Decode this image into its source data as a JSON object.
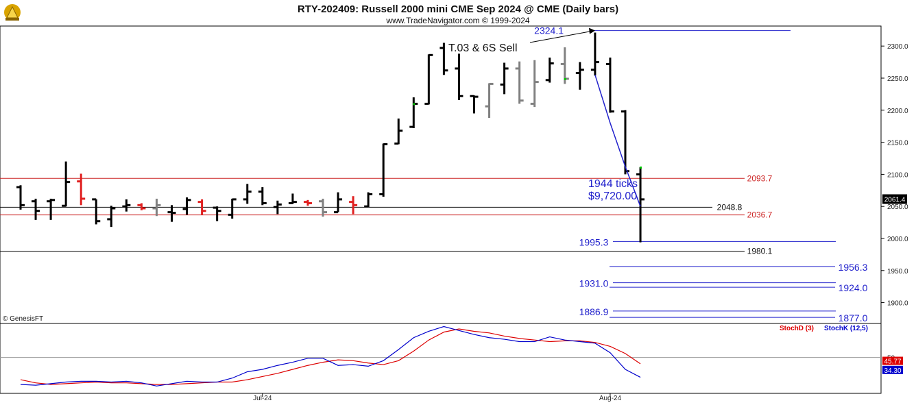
{
  "header": {
    "title": "RTY-202409:  Russell 2000 mini CME Sep 2024 @ CME  (Daily bars)",
    "subtitle": "www.TradeNavigator.com © 1999-2024",
    "copyright": "© GenesisFT"
  },
  "colors": {
    "bar_black": "#000000",
    "bar_gray": "#808080",
    "bar_red": "#e02020",
    "level_blue": "#2222cc",
    "level_red": "#cc2222",
    "stochD": "#dd0000",
    "stochK": "#0000cc"
  },
  "chart_data": [
    {
      "type": "ohlc",
      "title": "RTY-202409:  Russell 2000 mini CME Sep 2024 @ CME  (Daily bars)",
      "y_ticks": [
        "1900.0",
        "1950.0",
        "2000.0",
        "2050.0",
        "2100.0",
        "2150.0",
        "2200.0",
        "2250.0",
        "2300.0"
      ],
      "x_tick_labels": [
        {
          "label": "Jul-24",
          "bar_index": 16
        },
        {
          "label": "Aug-24",
          "bar_index": 39
        }
      ],
      "ylim": [
        1877,
        2330
      ],
      "last_price": "2061.4",
      "bars": [
        {
          "o": 2080,
          "h": 2083,
          "l": 2045,
          "c": 2052,
          "color": "black"
        },
        {
          "o": 2058,
          "h": 2062,
          "l": 2029,
          "c": 2043,
          "color": "black"
        },
        {
          "o": 2058,
          "h": 2062,
          "l": 2029,
          "c": 2060,
          "color": "black"
        },
        {
          "o": 2051,
          "h": 2120,
          "l": 2050,
          "c": 2088,
          "color": "black"
        },
        {
          "o": 2089,
          "h": 2101,
          "l": 2052,
          "c": 2062,
          "color": "red"
        },
        {
          "o": 2061,
          "h": 2061,
          "l": 2022,
          "c": 2027,
          "color": "black"
        },
        {
          "o": 2030,
          "h": 2051,
          "l": 2018,
          "c": 2047,
          "color": "black"
        },
        {
          "o": 2050,
          "h": 2061,
          "l": 2042,
          "c": 2052,
          "color": "black"
        },
        {
          "o": 2052,
          "h": 2055,
          "l": 2044,
          "c": 2047,
          "color": "red"
        },
        {
          "o": 2047,
          "h": 2062,
          "l": 2035,
          "c": 2052,
          "color": "gray"
        },
        {
          "o": 2041,
          "h": 2052,
          "l": 2026,
          "c": 2040,
          "color": "black"
        },
        {
          "o": 2046,
          "h": 2064,
          "l": 2037,
          "c": 2060,
          "color": "black"
        },
        {
          "o": 2057,
          "h": 2061,
          "l": 2037,
          "c": 2043,
          "color": "red"
        },
        {
          "o": 2048,
          "h": 2050,
          "l": 2027,
          "c": 2043,
          "color": "black"
        },
        {
          "o": 2037,
          "h": 2062,
          "l": 2031,
          "c": 2061,
          "color": "black"
        },
        {
          "o": 2061,
          "h": 2085,
          "l": 2054,
          "c": 2073,
          "color": "black"
        },
        {
          "o": 2073,
          "h": 2080,
          "l": 2052,
          "c": 2055,
          "color": "black"
        },
        {
          "o": 2049,
          "h": 2059,
          "l": 2038,
          "c": 2053,
          "color": "black"
        },
        {
          "o": 2055,
          "h": 2070,
          "l": 2054,
          "c": 2057,
          "color": "black"
        },
        {
          "o": 2057,
          "h": 2060,
          "l": 2051,
          "c": 2055,
          "color": "red"
        },
        {
          "o": 2058,
          "h": 2062,
          "l": 2034,
          "c": 2041,
          "color": "gray"
        },
        {
          "o": 2041,
          "h": 2072,
          "l": 2041,
          "c": 2061,
          "color": "black"
        },
        {
          "o": 2057,
          "h": 2066,
          "l": 2038,
          "c": 2052,
          "color": "red"
        },
        {
          "o": 2050,
          "h": 2072,
          "l": 2049,
          "c": 2069,
          "color": "black"
        },
        {
          "o": 2069,
          "h": 2148,
          "l": 2065,
          "c": 2147,
          "color": "black"
        },
        {
          "o": 2148,
          "h": 2187,
          "l": 2147,
          "c": 2168,
          "color": "black"
        },
        {
          "o": 2174,
          "h": 2220,
          "l": 2172,
          "c": 2210,
          "color": "black"
        },
        {
          "o": 2210,
          "h": 2287,
          "l": 2209,
          "c": 2286,
          "color": "black"
        },
        {
          "o": 2297,
          "h": 2305,
          "l": 2255,
          "c": 2262,
          "color": "black"
        },
        {
          "o": 2265,
          "h": 2288,
          "l": 2216,
          "c": 2222,
          "color": "black"
        },
        {
          "o": 2222,
          "h": 2223,
          "l": 2195,
          "c": 2221,
          "color": "black"
        },
        {
          "o": 2206,
          "h": 2242,
          "l": 2188,
          "c": 2241,
          "color": "gray"
        },
        {
          "o": 2240,
          "h": 2274,
          "l": 2225,
          "c": 2265,
          "color": "black"
        },
        {
          "o": 2265,
          "h": 2276,
          "l": 2210,
          "c": 2215,
          "color": "gray"
        },
        {
          "o": 2210,
          "h": 2278,
          "l": 2205,
          "c": 2244,
          "color": "gray"
        },
        {
          "o": 2247,
          "h": 2282,
          "l": 2243,
          "c": 2273,
          "color": "black"
        },
        {
          "o": 2272,
          "h": 2298,
          "l": 2241,
          "c": 2249,
          "color": "gray"
        },
        {
          "o": 2258,
          "h": 2275,
          "l": 2232,
          "c": 2263,
          "color": "black"
        },
        {
          "o": 2263,
          "h": 2321,
          "l": 2254,
          "c": 2275,
          "color": "black"
        },
        {
          "o": 2272,
          "h": 2282,
          "l": 2196,
          "c": 2198,
          "color": "black"
        },
        {
          "o": 2198,
          "h": 2200,
          "l": 2100,
          "c": 2105,
          "color": "black"
        },
        {
          "o": 2100,
          "h": 2111,
          "l": 1994,
          "c": 2061,
          "color": "black"
        }
      ],
      "levels": [
        {
          "value": 2324.1,
          "label": "2324.1",
          "color": "blue"
        },
        {
          "value": 2093.7,
          "label": "2093.7",
          "color": "red"
        },
        {
          "value": 2048.8,
          "label": "2048.8",
          "color": "black"
        },
        {
          "value": 2036.7,
          "label": "2036.7",
          "color": "red"
        },
        {
          "value": 1995.3,
          "label": "1995.3",
          "color": "blue"
        },
        {
          "value": 1980.1,
          "label": "1980.1",
          "color": "black"
        },
        {
          "value": 1956.3,
          "label": "1956.3",
          "color": "blue"
        },
        {
          "value": 1931.0,
          "label": "1931.0",
          "color": "blue"
        },
        {
          "value": 1924.0,
          "label": "1924.0",
          "color": "blue"
        },
        {
          "value": 1886.9,
          "label": "1886.9",
          "color": "blue"
        },
        {
          "value": 1877.0,
          "label": "1877.0",
          "color": "blue"
        }
      ],
      "annotations": {
        "signal": "T.03 & 6S Sell",
        "ticks": "1944 ticks",
        "dollars": "$9,720.00"
      }
    },
    {
      "type": "line",
      "series": [
        {
          "name": "StochD (3)",
          "values": [
            22,
            18,
            16,
            17,
            18,
            19,
            18,
            18,
            17,
            16,
            16,
            17,
            18,
            19,
            19,
            22,
            26,
            30,
            35,
            40,
            44,
            47,
            46,
            43,
            41,
            46,
            58,
            72,
            82,
            86,
            83,
            81,
            77,
            74,
            72,
            70,
            71,
            71,
            69,
            64,
            55,
            42
          ]
        },
        {
          "name": "StochK (12,5)",
          "values": [
            16,
            15,
            17,
            19,
            20,
            20,
            19,
            20,
            18,
            14,
            17,
            20,
            19,
            19,
            24,
            32,
            35,
            40,
            44,
            49,
            49,
            40,
            41,
            39,
            46,
            60,
            75,
            83,
            89,
            84,
            79,
            75,
            73,
            70,
            70,
            76,
            72,
            70,
            68,
            56,
            35,
            25
          ]
        }
      ],
      "labels": {
        "d": "StochD (3)",
        "k": "StochK (12,5)",
        "tick50": "50",
        "d_value": "45.77",
        "k_value": "34.30"
      }
    }
  ]
}
